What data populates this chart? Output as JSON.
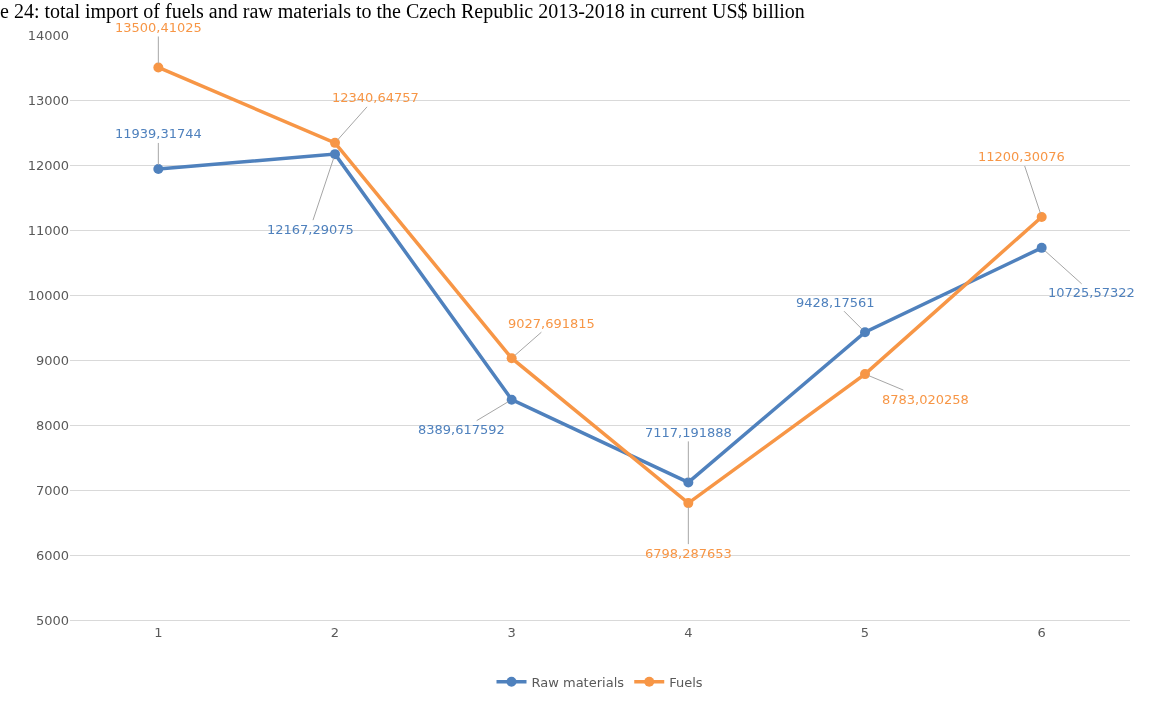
{
  "chart_data": {
    "type": "line",
    "title": "e 24: total import of fuels and raw materials to the Czech Republic 2013-2018 in current US$ billion",
    "categories": [
      "1",
      "2",
      "3",
      "4",
      "5",
      "6"
    ],
    "series": [
      {
        "name": "Raw materials",
        "color": "#4f81bd",
        "values": [
          11939.31744,
          12167.29075,
          8389.617592,
          7117.191888,
          9428.17561,
          10725.57322
        ],
        "value_labels": [
          "11939,31744",
          "12167,29075",
          "8389,617592",
          "7117,191888",
          "9428,17561",
          "10725,57322"
        ]
      },
      {
        "name": "Fuels",
        "color": "#f79646",
        "values": [
          13500.41025,
          12340.64757,
          9027.691815,
          6798.287653,
          8783.020258,
          11200.30076
        ],
        "value_labels": [
          "13500,41025",
          "12340,64757",
          "9027,691815",
          "6798,287653",
          "8783,020258",
          "11200,30076"
        ]
      }
    ],
    "ylim": [
      5000,
      14000
    ],
    "yticks": [
      5000,
      6000,
      7000,
      8000,
      9000,
      10000,
      11000,
      12000,
      13000,
      14000
    ],
    "grid": "y",
    "legend": "bottom",
    "marker": "circle",
    "line_style": "solid"
  }
}
